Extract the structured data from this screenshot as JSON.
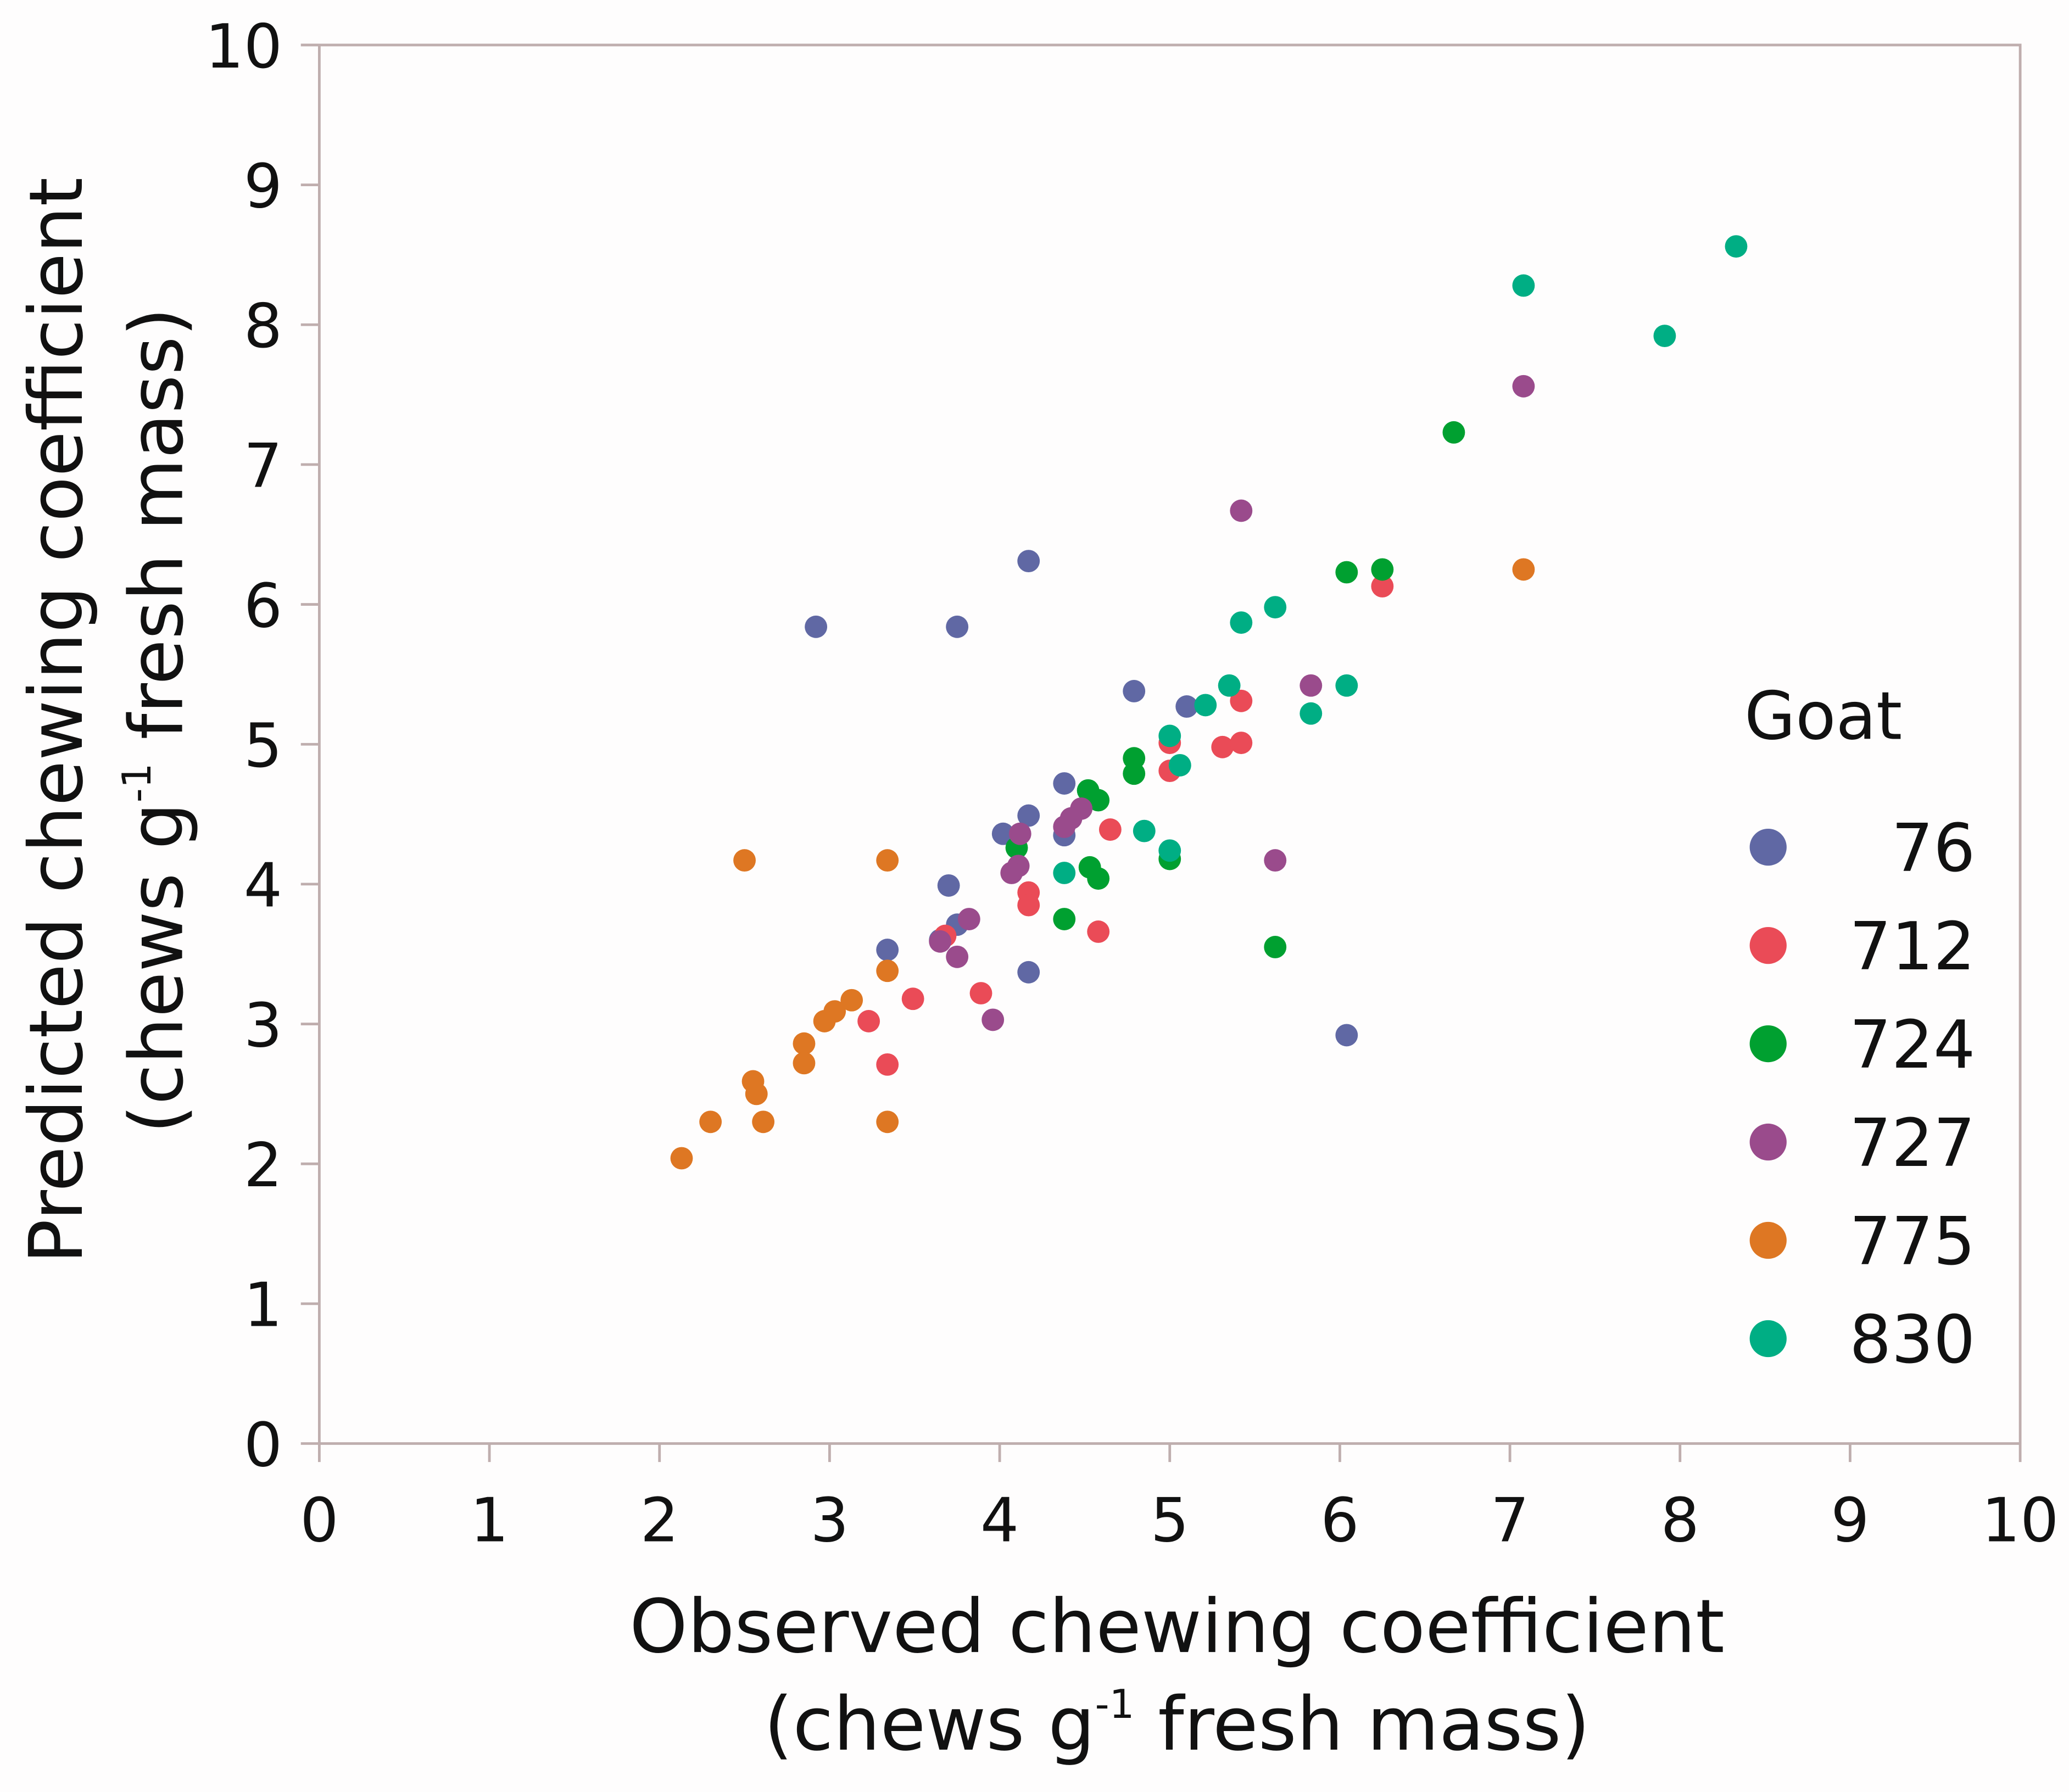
{
  "chart_data": {
    "type": "scatter",
    "title": "",
    "xlabel": {
      "line1": "Observed chewing coefficient",
      "line2_pre": "(chews g",
      "line2_sup": "-1",
      "line2_post": " fresh mass)"
    },
    "ylabel": {
      "line1": "Predicted chewing coefficient",
      "line2_pre": "(chews g",
      "line2_sup": "-1",
      "line2_post": " fresh mass)"
    },
    "xlim": [
      0,
      10
    ],
    "ylim": [
      0,
      10
    ],
    "xticks": [
      "0",
      "1",
      "2",
      "3",
      "4",
      "5",
      "6",
      "7",
      "8",
      "9",
      "10"
    ],
    "yticks": [
      "0",
      "1",
      "2",
      "3",
      "4",
      "5",
      "6",
      "7",
      "8",
      "9",
      "10"
    ],
    "grid": false,
    "legend": {
      "title": "Goat",
      "placement": "right"
    },
    "axis_color": "#bfaeae",
    "series": [
      {
        "name": "76",
        "color": "#6068a4",
        "points": [
          [
            2.92,
            5.84
          ],
          [
            3.75,
            5.84
          ],
          [
            4.17,
            6.31
          ],
          [
            4.79,
            5.38
          ],
          [
            5.1,
            5.27
          ],
          [
            4.38,
            4.72
          ],
          [
            4.17,
            4.49
          ],
          [
            4.02,
            4.36
          ],
          [
            4.38,
            4.35
          ],
          [
            3.7,
            3.99
          ],
          [
            3.75,
            3.71
          ],
          [
            3.65,
            3.6
          ],
          [
            3.34,
            3.53
          ],
          [
            4.17,
            3.37
          ],
          [
            6.04,
            2.92
          ]
        ]
      },
      {
        "name": "712",
        "color": "#ea4b57",
        "points": [
          [
            6.25,
            6.13
          ],
          [
            5.42,
            5.31
          ],
          [
            5.0,
            5.01
          ],
          [
            5.31,
            4.98
          ],
          [
            5.42,
            5.01
          ],
          [
            5.0,
            4.81
          ],
          [
            4.65,
            4.39
          ],
          [
            4.17,
            3.94
          ],
          [
            4.17,
            3.85
          ],
          [
            4.58,
            3.66
          ],
          [
            3.68,
            3.63
          ],
          [
            3.49,
            3.18
          ],
          [
            3.89,
            3.22
          ],
          [
            3.23,
            3.02
          ],
          [
            3.34,
            2.71
          ]
        ]
      },
      {
        "name": "724",
        "color": "#00a030",
        "points": [
          [
            6.67,
            7.23
          ],
          [
            6.25,
            6.25
          ],
          [
            6.04,
            6.23
          ],
          [
            4.79,
            4.9
          ],
          [
            4.79,
            4.79
          ],
          [
            4.52,
            4.67
          ],
          [
            4.58,
            4.6
          ],
          [
            4.1,
            4.26
          ],
          [
            4.53,
            4.12
          ],
          [
            4.58,
            4.04
          ],
          [
            5.0,
            4.18
          ],
          [
            4.38,
            3.75
          ],
          [
            5.62,
            3.55
          ]
        ]
      },
      {
        "name": "727",
        "color": "#9a4b8c",
        "points": [
          [
            7.08,
            7.56
          ],
          [
            5.42,
            6.67
          ],
          [
            5.83,
            5.42
          ],
          [
            5.62,
            4.17
          ],
          [
            4.48,
            4.54
          ],
          [
            4.42,
            4.47
          ],
          [
            4.38,
            4.41
          ],
          [
            4.12,
            4.36
          ],
          [
            4.11,
            4.13
          ],
          [
            4.07,
            4.08
          ],
          [
            3.82,
            3.75
          ],
          [
            3.65,
            3.59
          ],
          [
            3.75,
            3.48
          ],
          [
            3.96,
            3.03
          ]
        ]
      },
      {
        "name": "775",
        "color": "#de7723",
        "points": [
          [
            7.08,
            6.25
          ],
          [
            2.5,
            4.17
          ],
          [
            3.34,
            4.17
          ],
          [
            3.34,
            3.38
          ],
          [
            3.13,
            3.17
          ],
          [
            3.03,
            3.09
          ],
          [
            2.97,
            3.02
          ],
          [
            2.85,
            2.86
          ],
          [
            2.85,
            2.72
          ],
          [
            2.55,
            2.59
          ],
          [
            2.57,
            2.5
          ],
          [
            2.3,
            2.3
          ],
          [
            2.61,
            2.3
          ],
          [
            3.34,
            2.3
          ],
          [
            2.13,
            2.04
          ]
        ]
      },
      {
        "name": "830",
        "color": "#00ae84",
        "points": [
          [
            8.33,
            8.56
          ],
          [
            7.08,
            8.28
          ],
          [
            7.91,
            7.92
          ],
          [
            5.62,
            5.98
          ],
          [
            5.42,
            5.87
          ],
          [
            5.35,
            5.42
          ],
          [
            6.04,
            5.42
          ],
          [
            5.21,
            5.28
          ],
          [
            5.83,
            5.22
          ],
          [
            5.0,
            5.06
          ],
          [
            5.06,
            4.85
          ],
          [
            4.85,
            4.38
          ],
          [
            5.0,
            4.24
          ],
          [
            4.38,
            4.08
          ]
        ]
      }
    ]
  }
}
